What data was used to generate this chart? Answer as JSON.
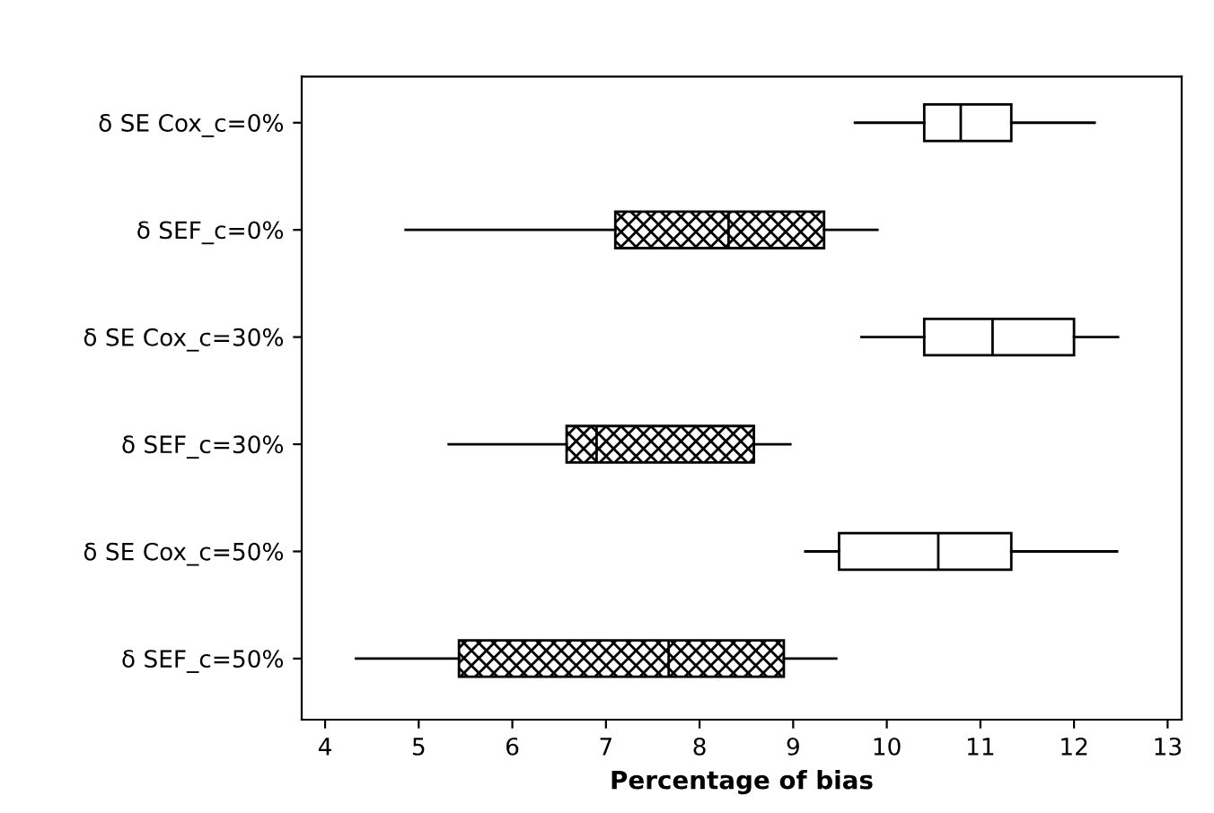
{
  "chart_data": {
    "type": "box",
    "orientation": "horizontal",
    "xlabel": "Percentage of bias",
    "categories": [
      "δ SE Cox_c=0%",
      "δ SEF_c=0%",
      "δ SE Cox_c=30%",
      "δ SEF_c=30%",
      "δ SE Cox_c=50%",
      "δ SEF_c=50%"
    ],
    "series": [
      {
        "color": "#ffffff",
        "boxes": [
          {
            "low": 9.66,
            "q1": 10.4,
            "median": 10.79,
            "q3": 11.33,
            "high": 12.22
          },
          null,
          {
            "low": 9.73,
            "q1": 10.4,
            "median": 11.13,
            "q3": 12.0,
            "high": 12.47
          },
          null,
          {
            "low": 9.13,
            "q1": 9.49,
            "median": 10.55,
            "q3": 11.33,
            "high": 12.46
          },
          null
        ]
      },
      {
        "color": "#000000",
        "boxes": [
          null,
          {
            "low": 4.86,
            "q1": 7.1,
            "median": 8.31,
            "q3": 9.33,
            "high": 9.9
          },
          null,
          {
            "low": 5.32,
            "q1": 6.58,
            "median": 6.9,
            "q3": 8.58,
            "high": 8.97
          },
          null,
          {
            "low": 4.33,
            "q1": 5.43,
            "median": 7.67,
            "q3": 8.9,
            "high": 9.46
          }
        ]
      }
    ],
    "xlim": [
      3.75,
      13.15
    ],
    "xticks": [
      4,
      5,
      6,
      7,
      8,
      9,
      10,
      11,
      12,
      13
    ],
    "grid": false
  }
}
